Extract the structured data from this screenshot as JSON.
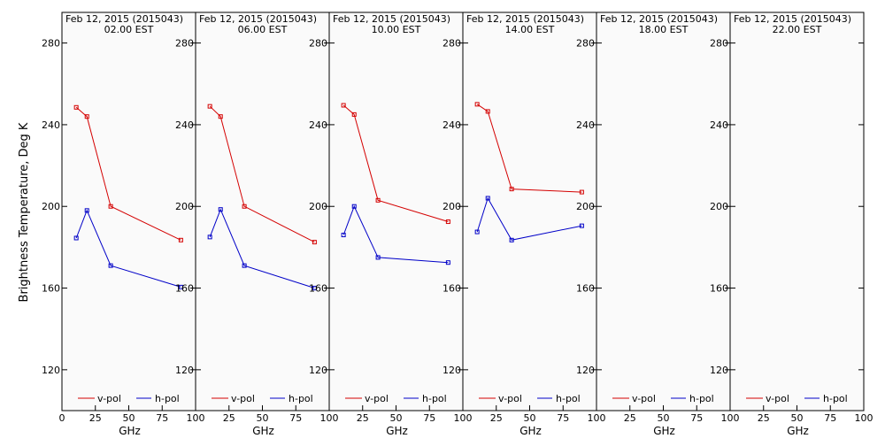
{
  "chart_data": {
    "type": "line",
    "ylabel": "Brightness Temperature, Deg K",
    "xlabel": "GHz",
    "xlim": [
      0,
      100
    ],
    "ylim": [
      100,
      295
    ],
    "x_ticks": [
      0,
      25,
      50,
      75,
      100
    ],
    "y_ticks": [
      120,
      160,
      200,
      240,
      280
    ],
    "legend": [
      "v-pol",
      "h-pol"
    ],
    "colors": {
      "v-pol": "#d40000",
      "h-pol": "#0000c8"
    },
    "panels": [
      {
        "title_line1": "Feb 12, 2015 (2015043)",
        "title_line2": "02.00 EST",
        "series": [
          {
            "name": "v-pol",
            "x": [
              10.7,
              18.7,
              36.5,
              89.0
            ],
            "y": [
              248.5,
              244.0,
              200.0,
              183.5
            ]
          },
          {
            "name": "h-pol",
            "x": [
              10.7,
              18.7,
              36.5,
              89.0
            ],
            "y": [
              184.5,
              198.0,
              171.0,
              160.5
            ]
          }
        ]
      },
      {
        "title_line1": "Feb 12, 2015 (2015043)",
        "title_line2": "06.00 EST",
        "series": [
          {
            "name": "v-pol",
            "x": [
              10.7,
              18.7,
              36.5,
              89.0
            ],
            "y": [
              249.0,
              244.0,
              200.0,
              182.5
            ]
          },
          {
            "name": "h-pol",
            "x": [
              10.7,
              18.7,
              36.5,
              89.0
            ],
            "y": [
              185.0,
              198.5,
              171.0,
              160.0
            ]
          }
        ]
      },
      {
        "title_line1": "Feb 12, 2015 (2015043)",
        "title_line2": "10.00 EST",
        "series": [
          {
            "name": "v-pol",
            "x": [
              10.7,
              18.7,
              36.5,
              89.0
            ],
            "y": [
              249.5,
              245.0,
              203.0,
              192.5
            ]
          },
          {
            "name": "h-pol",
            "x": [
              10.7,
              18.7,
              36.5,
              89.0
            ],
            "y": [
              186.0,
              200.0,
              175.0,
              172.5
            ]
          }
        ]
      },
      {
        "title_line1": "Feb 12, 2015 (2015043)",
        "title_line2": "14.00 EST",
        "series": [
          {
            "name": "v-pol",
            "x": [
              10.7,
              18.7,
              36.5,
              89.0
            ],
            "y": [
              250.0,
              246.5,
              208.5,
              207.0
            ]
          },
          {
            "name": "h-pol",
            "x": [
              10.7,
              18.7,
              36.5,
              89.0
            ],
            "y": [
              187.5,
              204.0,
              183.5,
              190.5
            ]
          }
        ]
      },
      {
        "title_line1": "Feb 12, 2015 (2015043)",
        "title_line2": "18.00 EST",
        "series": [
          {
            "name": "v-pol",
            "x": [],
            "y": []
          },
          {
            "name": "h-pol",
            "x": [],
            "y": []
          }
        ]
      },
      {
        "title_line1": "Feb 12, 2015 (2015043)",
        "title_line2": "22.00 EST",
        "series": [
          {
            "name": "v-pol",
            "x": [],
            "y": []
          },
          {
            "name": "h-pol",
            "x": [],
            "y": []
          }
        ]
      }
    ]
  }
}
